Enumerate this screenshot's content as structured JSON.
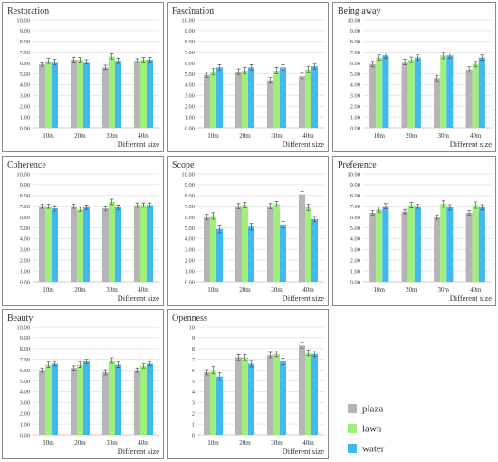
{
  "colors": {
    "plaza": "#b5b5b5",
    "lawn": "#9ef07b",
    "water": "#3fb9ef"
  },
  "legend": {
    "placement": "bottom-right",
    "items": [
      "plaza",
      "lawn",
      "water"
    ]
  },
  "chart_data": [
    {
      "type": "bar",
      "title": "Restoration",
      "xlabel": "Different size",
      "ylabel": "",
      "categories": [
        "10m",
        "20m",
        "30m",
        "40m"
      ],
      "ylim": [
        0,
        10
      ],
      "yticks": [
        "0.00",
        "1.00",
        "2.00",
        "3.00",
        "4.00",
        "5.00",
        "6.00",
        "7.00",
        "8.00",
        "9.00",
        "10.00"
      ],
      "series": [
        {
          "name": "plaza",
          "values": [
            5.9,
            6.3,
            5.6,
            6.2
          ],
          "errors": [
            0.2,
            0.2,
            0.2,
            0.2
          ]
        },
        {
          "name": "lawn",
          "values": [
            6.2,
            6.3,
            6.6,
            6.3
          ],
          "errors": [
            0.25,
            0.2,
            0.25,
            0.2
          ]
        },
        {
          "name": "water",
          "values": [
            6.1,
            6.1,
            6.2,
            6.3
          ],
          "errors": [
            0.25,
            0.2,
            0.25,
            0.2
          ]
        }
      ]
    },
    {
      "type": "bar",
      "title": "Fascination",
      "xlabel": "Different size",
      "ylabel": "",
      "categories": [
        "10m",
        "20m",
        "30m",
        "40m"
      ],
      "ylim": [
        0,
        10
      ],
      "yticks": [
        "0.00",
        "1.00",
        "2.00",
        "3.00",
        "4.00",
        "5.00",
        "6.00",
        "7.00",
        "8.00",
        "9.00",
        "10.00"
      ],
      "series": [
        {
          "name": "plaza",
          "values": [
            4.9,
            5.2,
            4.4,
            4.8
          ],
          "errors": [
            0.25,
            0.25,
            0.25,
            0.25
          ]
        },
        {
          "name": "lawn",
          "values": [
            5.2,
            5.3,
            5.3,
            5.4
          ],
          "errors": [
            0.3,
            0.3,
            0.3,
            0.3
          ]
        },
        {
          "name": "water",
          "values": [
            5.6,
            5.6,
            5.6,
            5.7
          ],
          "errors": [
            0.25,
            0.25,
            0.25,
            0.25
          ]
        }
      ]
    },
    {
      "type": "bar",
      "title": "Being away",
      "xlabel": "Different size",
      "ylabel": "",
      "categories": [
        "10m",
        "20m",
        "30m",
        "40m"
      ],
      "ylim": [
        0,
        10
      ],
      "yticks": [
        "0.00",
        "1.00",
        "2.00",
        "3.00",
        "4.00",
        "5.00",
        "6.00",
        "7.00",
        "8.00",
        "9.00",
        "10.00"
      ],
      "series": [
        {
          "name": "plaza",
          "values": [
            5.9,
            6.1,
            4.6,
            5.4
          ],
          "errors": [
            0.25,
            0.25,
            0.25,
            0.25
          ]
        },
        {
          "name": "lawn",
          "values": [
            6.5,
            6.3,
            6.7,
            5.9
          ],
          "errors": [
            0.25,
            0.25,
            0.3,
            0.25
          ]
        },
        {
          "name": "water",
          "values": [
            6.7,
            6.5,
            6.7,
            6.5
          ],
          "errors": [
            0.25,
            0.25,
            0.25,
            0.25
          ]
        }
      ]
    },
    {
      "type": "bar",
      "title": "Coherence",
      "xlabel": "Different size",
      "ylabel": "",
      "categories": [
        "10m",
        "20m",
        "30m",
        "40m"
      ],
      "ylim": [
        0,
        10
      ],
      "yticks": [
        "0.00",
        "1.00",
        "2.00",
        "3.00",
        "4.00",
        "5.00",
        "6.00",
        "7.00",
        "8.00",
        "9.00",
        "10.00"
      ],
      "series": [
        {
          "name": "plaza",
          "values": [
            7.0,
            7.0,
            6.8,
            7.1
          ],
          "errors": [
            0.2,
            0.2,
            0.2,
            0.2
          ]
        },
        {
          "name": "lawn",
          "values": [
            7.0,
            6.7,
            7.4,
            7.1
          ],
          "errors": [
            0.2,
            0.2,
            0.25,
            0.2
          ]
        },
        {
          "name": "water",
          "values": [
            6.8,
            6.9,
            6.9,
            7.1
          ],
          "errors": [
            0.25,
            0.2,
            0.2,
            0.2
          ]
        }
      ]
    },
    {
      "type": "bar",
      "title": "Scope",
      "xlabel": "Different size",
      "ylabel": "",
      "categories": [
        "10m",
        "20m",
        "30m",
        "40m"
      ],
      "ylim": [
        0,
        10
      ],
      "yticks": [
        "0.00",
        "1.00",
        "2.00",
        "3.00",
        "4.00",
        "5.00",
        "6.00",
        "7.00",
        "8.00",
        "9.00",
        "10.00"
      ],
      "series": [
        {
          "name": "plaza",
          "values": [
            6.0,
            7.0,
            7.0,
            8.1
          ],
          "errors": [
            0.25,
            0.25,
            0.25,
            0.25
          ]
        },
        {
          "name": "lawn",
          "values": [
            6.1,
            7.1,
            7.2,
            6.9
          ],
          "errors": [
            0.3,
            0.25,
            0.25,
            0.3
          ]
        },
        {
          "name": "water",
          "values": [
            4.9,
            5.1,
            5.3,
            5.8
          ],
          "errors": [
            0.35,
            0.3,
            0.3,
            0.25
          ]
        }
      ]
    },
    {
      "type": "bar",
      "title": "Preference",
      "xlabel": "Different size",
      "ylabel": "",
      "categories": [
        "10m",
        "20m",
        "30m",
        "40m"
      ],
      "ylim": [
        0,
        10
      ],
      "yticks": [
        "0.00",
        "1.00",
        "2.00",
        "3.00",
        "4.00",
        "5.00",
        "6.00",
        "7.00",
        "8.00",
        "9.00",
        "10.00"
      ],
      "series": [
        {
          "name": "plaza",
          "values": [
            6.4,
            6.5,
            6.0,
            6.4
          ],
          "errors": [
            0.2,
            0.2,
            0.2,
            0.2
          ]
        },
        {
          "name": "lawn",
          "values": [
            6.7,
            7.1,
            7.2,
            7.1
          ],
          "errors": [
            0.25,
            0.25,
            0.3,
            0.3
          ]
        },
        {
          "name": "water",
          "values": [
            7.0,
            7.0,
            6.9,
            6.9
          ],
          "errors": [
            0.25,
            0.2,
            0.25,
            0.25
          ]
        }
      ]
    },
    {
      "type": "bar",
      "title": "Beauty",
      "xlabel": "Different size",
      "ylabel": "",
      "categories": [
        "10m",
        "20m",
        "30m",
        "40m"
      ],
      "ylim": [
        0,
        10
      ],
      "yticks": [
        "0.00",
        "1.00",
        "2.00",
        "3.00",
        "4.00",
        "5.00",
        "6.00",
        "7.00",
        "8.00",
        "9.00",
        "10.00"
      ],
      "series": [
        {
          "name": "plaza",
          "values": [
            6.0,
            6.2,
            5.8,
            6.0
          ],
          "errors": [
            0.2,
            0.2,
            0.25,
            0.2
          ]
        },
        {
          "name": "lawn",
          "values": [
            6.5,
            6.5,
            6.9,
            6.4
          ],
          "errors": [
            0.25,
            0.25,
            0.25,
            0.2
          ]
        },
        {
          "name": "water",
          "values": [
            6.6,
            6.8,
            6.5,
            6.6
          ],
          "errors": [
            0.2,
            0.2,
            0.25,
            0.2
          ]
        }
      ]
    },
    {
      "type": "bar",
      "title": "Openness",
      "xlabel": "Different size",
      "ylabel": "",
      "categories": [
        "10m",
        "20m",
        "30m",
        "40m"
      ],
      "ylim": [
        0,
        10
      ],
      "yticks": [
        "0",
        "1",
        "2",
        "3",
        "4",
        "5",
        "6",
        "7",
        "8",
        "9",
        "10"
      ],
      "series": [
        {
          "name": "plaza",
          "values": [
            5.8,
            7.2,
            7.4,
            8.3
          ],
          "errors": [
            0.25,
            0.25,
            0.25,
            0.25
          ]
        },
        {
          "name": "lawn",
          "values": [
            6.0,
            7.2,
            7.5,
            7.6
          ],
          "errors": [
            0.35,
            0.25,
            0.25,
            0.25
          ]
        },
        {
          "name": "water",
          "values": [
            5.4,
            6.6,
            6.8,
            7.5
          ],
          "errors": [
            0.35,
            0.3,
            0.3,
            0.25
          ]
        }
      ]
    }
  ]
}
